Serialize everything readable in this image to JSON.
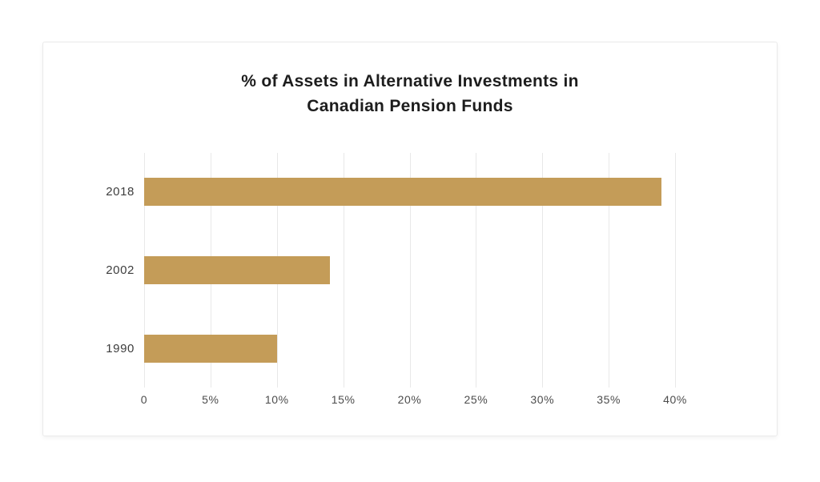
{
  "card": {
    "background": "#ffffff",
    "border_color": "#eaeaea"
  },
  "chart_data": {
    "type": "bar",
    "orientation": "horizontal",
    "title": "% of Assets in Alternative Investments in Canadian Pension Funds",
    "title_lines": [
      "% of Assets in Alternative Investments in",
      "Canadian Pension Funds"
    ],
    "categories": [
      "2018",
      "2002",
      "1990"
    ],
    "values": [
      39,
      14,
      10
    ],
    "value_unit": "%",
    "xlabel": "",
    "ylabel": "",
    "xlim": [
      0,
      40
    ],
    "xticks": [
      0,
      5,
      10,
      15,
      20,
      25,
      30,
      35,
      40
    ],
    "xtick_labels": [
      "0",
      "5%",
      "10%",
      "15%",
      "20%",
      "25%",
      "30%",
      "35%",
      "40%"
    ],
    "bar_color": "#c49c58",
    "grid": true,
    "gridline_color": "#e8e8e8",
    "legend": false,
    "title_color": "#1d1d1d",
    "tick_label_color": "#4c4c4c",
    "category_label_color": "#3d3d3d"
  }
}
